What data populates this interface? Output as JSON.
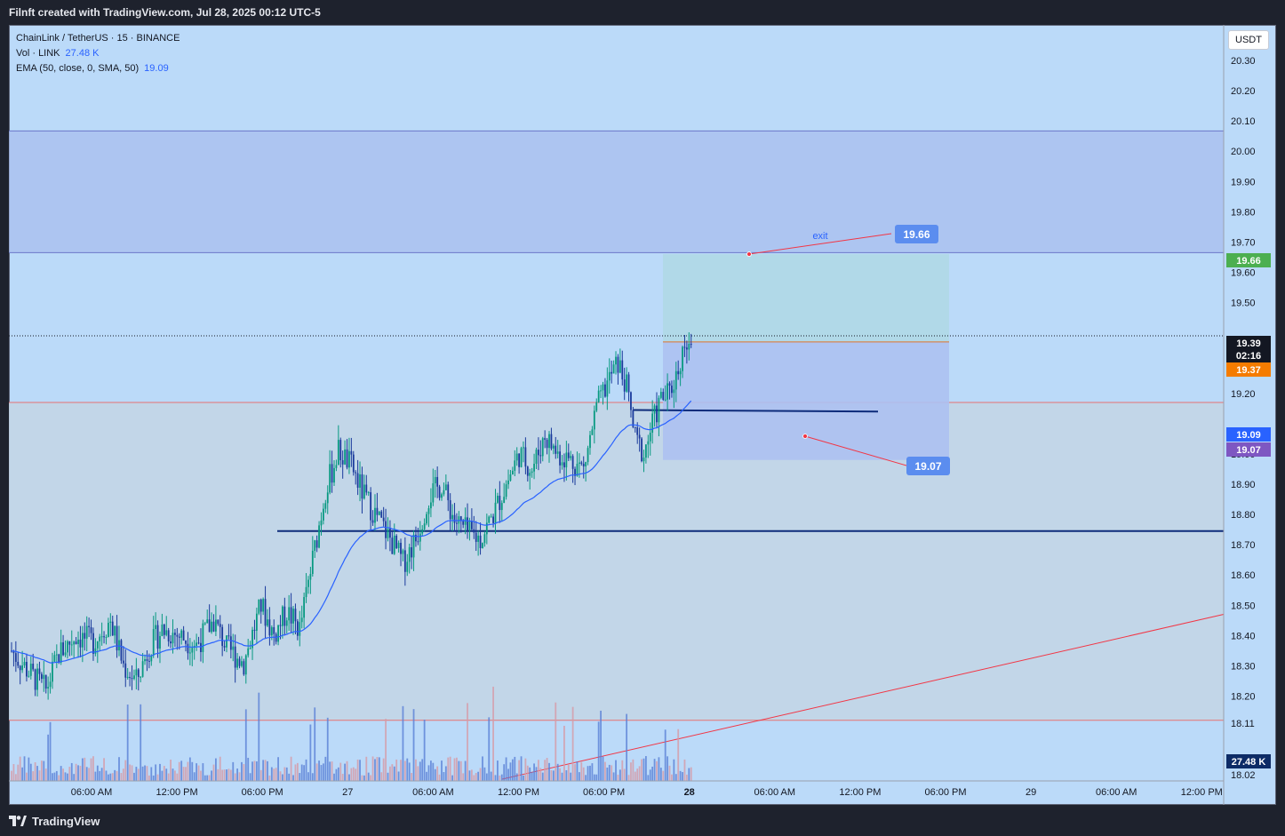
{
  "header": {
    "title": "Filnft created with TradingView.com, Jul 28, 2025 00:12 UTC-5"
  },
  "legend": {
    "symbol": "ChainLink / TetherUS · 15 · BINANCE",
    "volume_label": "Vol · LINK",
    "volume_value": "27.48 K",
    "ema_label": "EMA (50, close, 0, SMA, 50)",
    "ema_value": "19.09"
  },
  "price_axis": {
    "unit": "USDT",
    "ticks": [
      "20.30",
      "20.20",
      "20.10",
      "20.00",
      "19.90",
      "19.80",
      "19.70",
      "19.60",
      "19.50",
      "19.20",
      "19.00",
      "18.90",
      "18.80",
      "18.70",
      "18.60",
      "18.50",
      "18.40",
      "18.30",
      "18.20",
      "18.11",
      "18.02"
    ],
    "badges": [
      {
        "label": "19.66",
        "color": "#4caf50"
      },
      {
        "label": "19.39",
        "color": "#131722"
      },
      {
        "label": "02:16",
        "color": "#131722"
      },
      {
        "label": "19.37",
        "color": "#f57c00"
      },
      {
        "label": "19.09",
        "color": "#2962ff"
      },
      {
        "label": "19.07",
        "color": "#7e57c2"
      },
      {
        "label": "27.48 K",
        "color": "#0d2b66"
      }
    ]
  },
  "time_axis": {
    "ticks": [
      "06:00 AM",
      "12:00 PM",
      "06:00 PM",
      "27",
      "06:00 AM",
      "12:00 PM",
      "06:00 PM",
      "28",
      "06:00 AM",
      "12:00 PM",
      "06:00 PM",
      "29",
      "06:00 AM",
      "12:00 PM"
    ]
  },
  "annotations": {
    "exit_label": "exit",
    "target_label": "19.66",
    "stop_label": "19.07"
  },
  "footer": {
    "brand": "TradingView"
  },
  "colors": {
    "background": "#bbdaf9",
    "candle_up": "#089981",
    "candle_down": "#1a3a9c",
    "ema": "#2962ff",
    "zone": "#a8bdee",
    "target_zone": "#b0d8e6",
    "stop_zone": "#adc1f1",
    "red_line": "#f23645"
  },
  "chart_data": {
    "type": "candlestick",
    "symbol": "LINKUSDT",
    "interval": "15",
    "ylim": [
      18.02,
      20.35
    ],
    "levels": {
      "supply_zone": [
        19.665,
        20.067
      ],
      "horizontal_support": 18.745,
      "last_price": 19.39,
      "entry": 19.37,
      "target": 19.66,
      "stop": 19.07,
      "ema": 19.09,
      "volume_last": "27.48K"
    },
    "close_path": [
      [
        0,
        18.35
      ],
      [
        8,
        18.28
      ],
      [
        16,
        18.22
      ],
      [
        22,
        18.34
      ],
      [
        30,
        18.4
      ],
      [
        38,
        18.38
      ],
      [
        46,
        18.45
      ],
      [
        52,
        18.3
      ],
      [
        58,
        18.25
      ],
      [
        64,
        18.36
      ],
      [
        70,
        18.42
      ],
      [
        78,
        18.4
      ],
      [
        86,
        18.37
      ],
      [
        94,
        18.45
      ],
      [
        100,
        18.36
      ],
      [
        108,
        18.31
      ],
      [
        116,
        18.5
      ],
      [
        122,
        18.4
      ],
      [
        128,
        18.48
      ],
      [
        134,
        18.42
      ],
      [
        140,
        18.65
      ],
      [
        146,
        18.88
      ],
      [
        152,
        19.01
      ],
      [
        158,
        18.96
      ],
      [
        164,
        18.86
      ],
      [
        170,
        18.79
      ],
      [
        176,
        18.72
      ],
      [
        182,
        18.64
      ],
      [
        188,
        18.72
      ],
      [
        194,
        18.86
      ],
      [
        200,
        18.9
      ],
      [
        206,
        18.78
      ],
      [
        212,
        18.74
      ],
      [
        218,
        18.72
      ],
      [
        224,
        18.8
      ],
      [
        230,
        18.9
      ],
      [
        236,
        19.0
      ],
      [
        242,
        18.95
      ],
      [
        248,
        19.06
      ],
      [
        254,
        19.0
      ],
      [
        260,
        18.98
      ],
      [
        266,
        18.95
      ],
      [
        272,
        19.15
      ],
      [
        278,
        19.25
      ],
      [
        282,
        19.3
      ],
      [
        286,
        19.22
      ],
      [
        290,
        19.05
      ],
      [
        294,
        19.0
      ],
      [
        298,
        19.1
      ],
      [
        302,
        19.18
      ],
      [
        306,
        19.2
      ],
      [
        310,
        19.28
      ],
      [
        313,
        19.37
      ],
      [
        316,
        19.39
      ]
    ]
  }
}
